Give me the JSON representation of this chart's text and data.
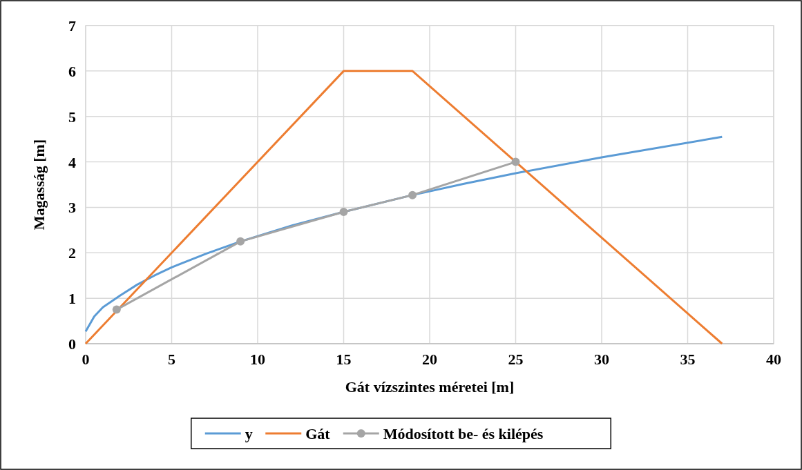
{
  "chart_data": {
    "type": "line",
    "xlabel": "Gát vízszintes méretei [m]",
    "ylabel": "Magasság [m]",
    "xlim": [
      0,
      40
    ],
    "xticks": [
      0,
      5,
      10,
      15,
      20,
      25,
      30,
      35,
      40
    ],
    "ylim": [
      0,
      7
    ],
    "yticks": [
      0,
      1,
      2,
      3,
      4,
      5,
      6,
      7
    ],
    "grid": true,
    "legend": "bottom",
    "series": [
      {
        "name": "y",
        "color": "#5b9bd5",
        "marker": "none",
        "x": [
          0,
          0.5,
          1,
          2,
          3,
          4,
          5,
          7,
          9,
          12,
          15,
          19,
          22,
          25,
          30,
          37
        ],
        "values": [
          0.27,
          0.6,
          0.8,
          1.06,
          1.3,
          1.5,
          1.68,
          1.98,
          2.25,
          2.6,
          2.9,
          3.27,
          3.52,
          3.75,
          4.1,
          4.55
        ]
      },
      {
        "name": "Gát",
        "color": "#ed7d31",
        "marker": "none",
        "x": [
          0,
          15,
          19,
          37
        ],
        "values": [
          0,
          6,
          6,
          0
        ]
      },
      {
        "name": "Módosított be- és kilépés",
        "color": "#a5a5a5",
        "marker": "circle",
        "x": [
          1.8,
          9,
          15,
          19,
          25
        ],
        "values": [
          0.75,
          2.25,
          2.9,
          3.27,
          4
        ]
      }
    ]
  }
}
